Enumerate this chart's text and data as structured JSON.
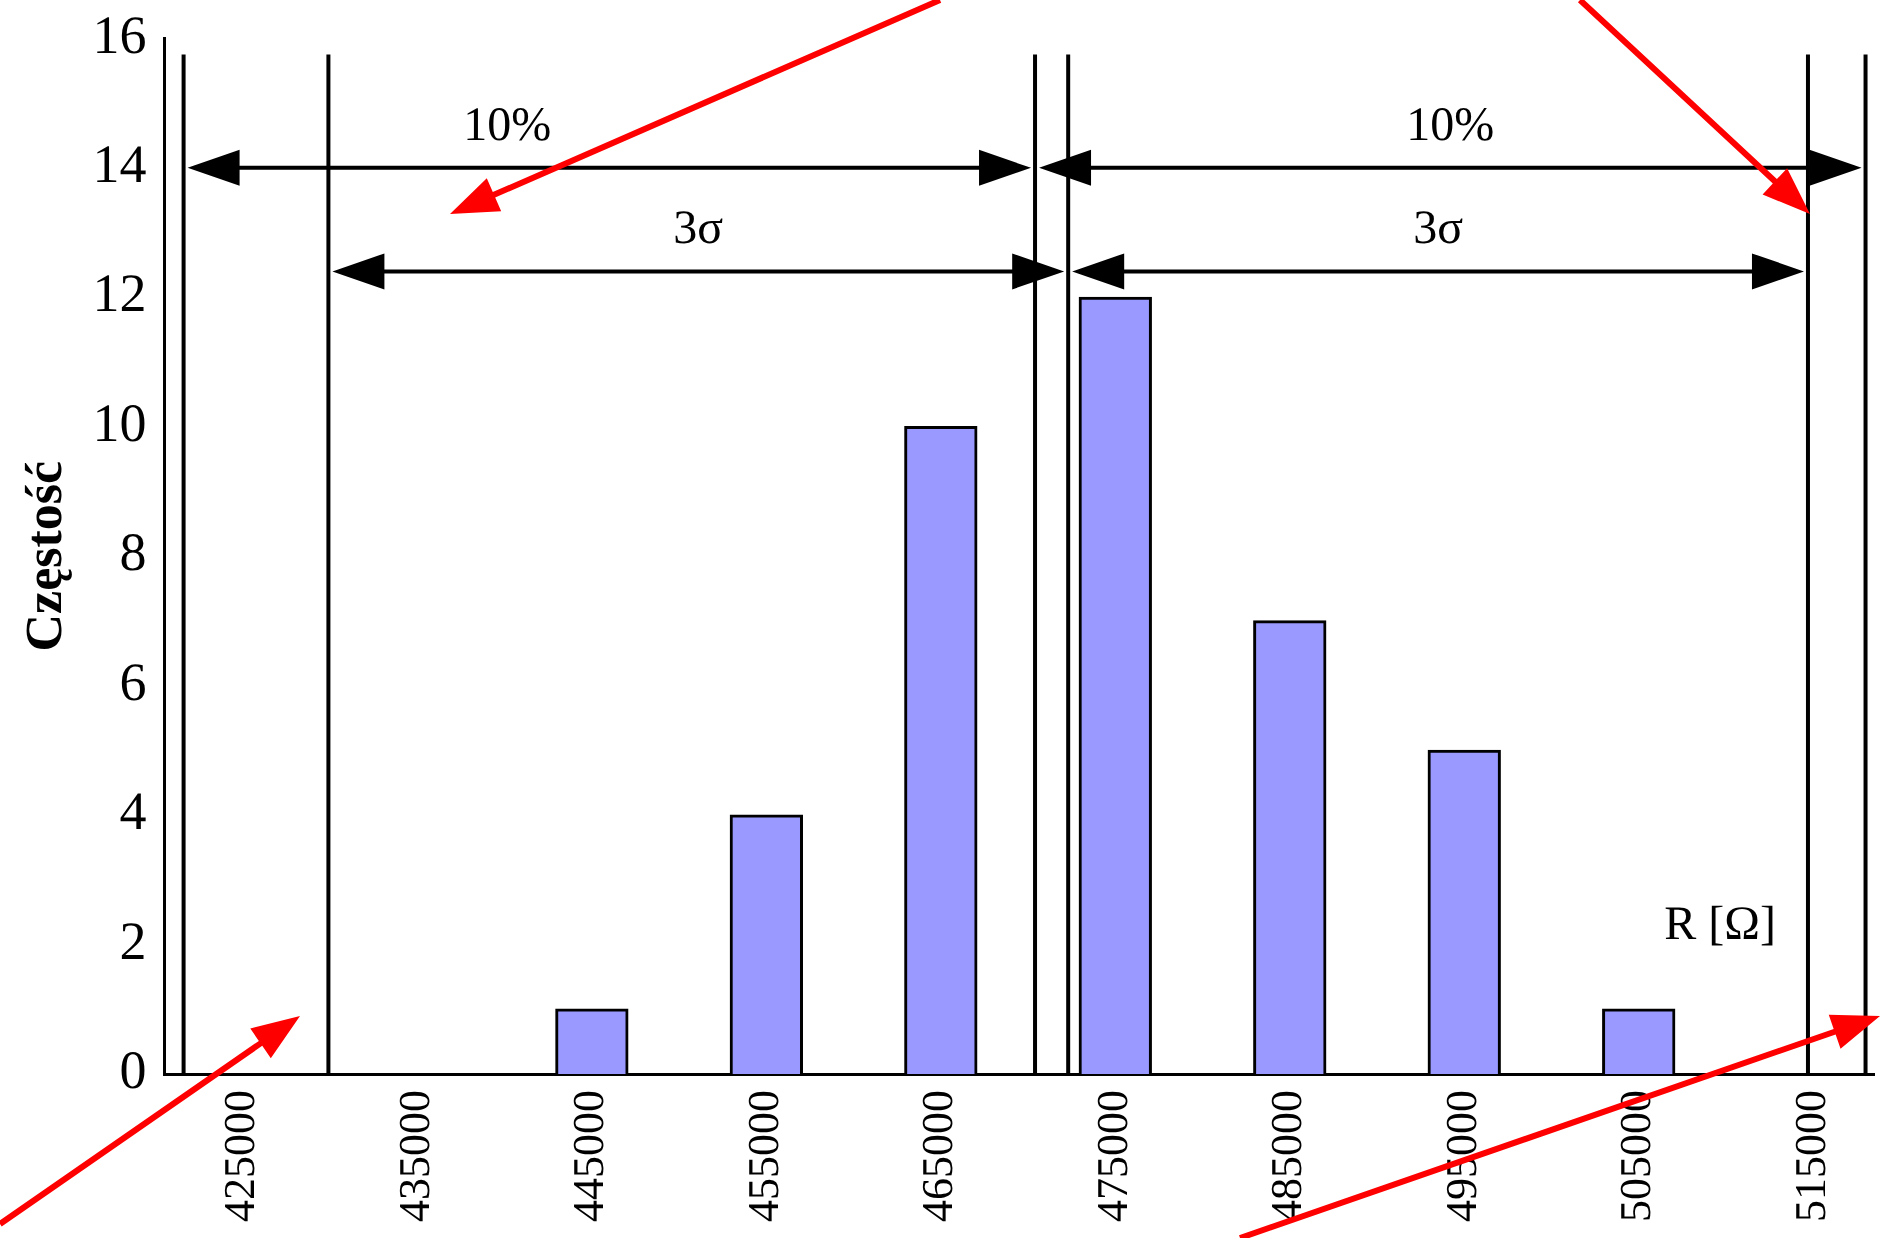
{
  "chart_data": {
    "type": "bar",
    "ylabel": "Częstość",
    "xlabel": "R [Ω]",
    "x": [
      425000,
      435000,
      445000,
      455000,
      465000,
      475000,
      485000,
      495000,
      505000,
      515000
    ],
    "values": [
      0,
      0,
      1,
      4,
      10,
      12,
      7,
      5,
      1,
      0
    ],
    "color": "#9999ff",
    "xlim": [
      420500,
      518500
    ],
    "xticks": [
      425000,
      435000,
      445000,
      455000,
      465000,
      475000,
      485000,
      495000,
      505000,
      515000
    ],
    "ylim": [
      0,
      16
    ],
    "yticks": [
      0,
      2,
      4,
      6,
      8,
      10,
      12,
      14,
      16
    ],
    "ref_lines": [
      {
        "axis": "x",
        "value": 421600,
        "color": "#000000"
      },
      {
        "axis": "x",
        "value": 429900,
        "color": "#000000"
      },
      {
        "axis": "x",
        "value": 470400,
        "color": "#000000"
      },
      {
        "axis": "x",
        "value": 472300,
        "color": "#000000"
      },
      {
        "axis": "x",
        "value": 514700,
        "color": "#000000"
      },
      {
        "axis": "x",
        "value": 518000,
        "color": "#000000"
      }
    ],
    "annotations": [
      "10%",
      "10%",
      "3σ",
      "3σ"
    ]
  }
}
